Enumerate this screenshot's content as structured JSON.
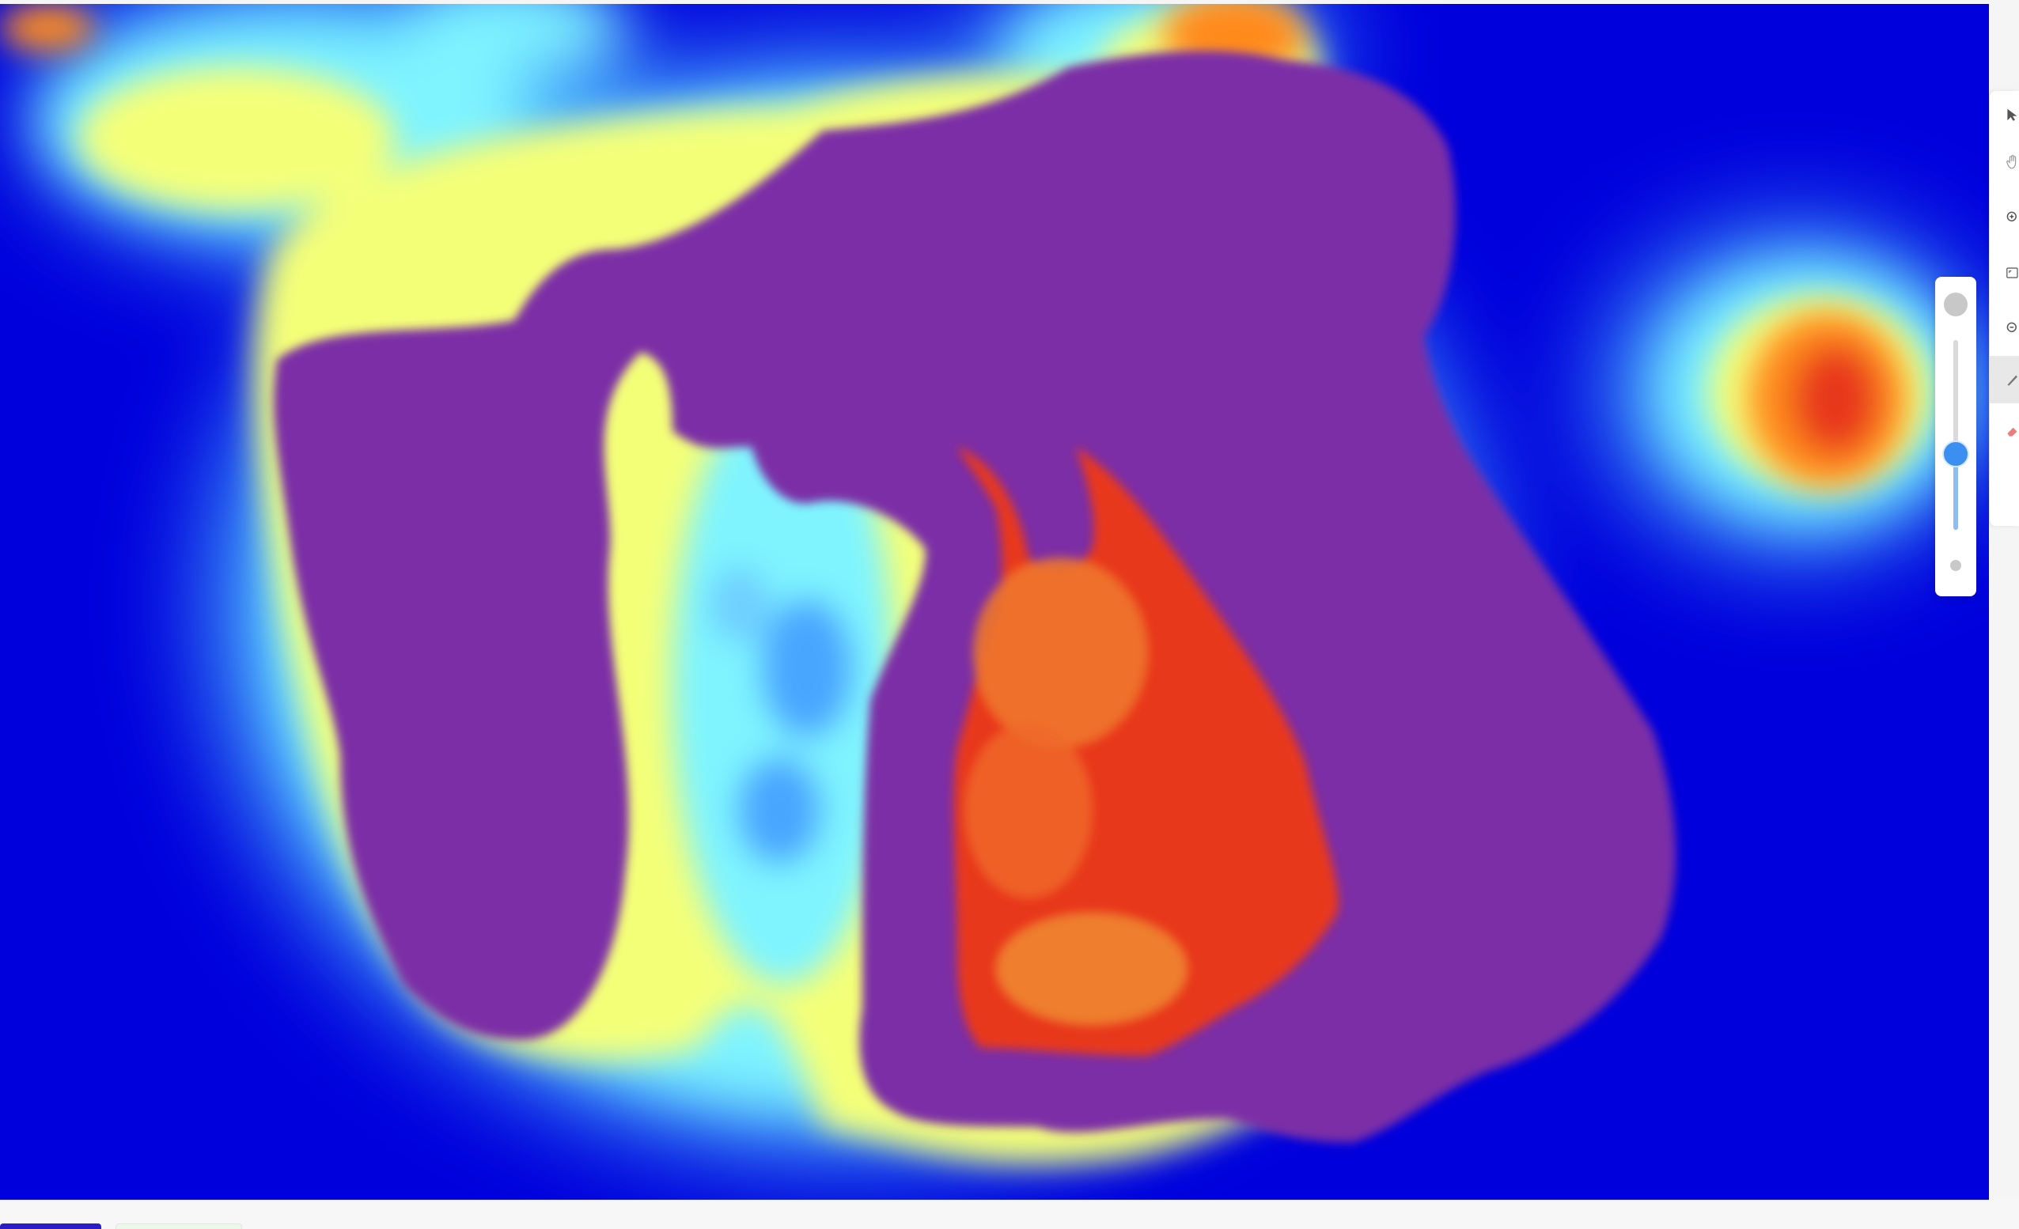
{
  "canvas": {
    "background_color": "#0000dc",
    "heat_colors": [
      "#0000dc",
      "#4ab6ff",
      "#7ff4ff",
      "#f4ff78",
      "#ff8a1e",
      "#e8391c"
    ],
    "mask_color": "#7b2fa6"
  },
  "toolbar": {
    "tools": [
      {
        "icon": "pointer-icon"
      },
      {
        "icon": "hand-icon"
      },
      {
        "icon": "zoom-in-icon"
      },
      {
        "icon": "fit-screen-icon"
      },
      {
        "icon": "zoom-out-icon"
      },
      {
        "icon": "brush-icon",
        "active": true
      },
      {
        "icon": "eraser-icon"
      }
    ]
  },
  "brush_size": {
    "level": 0.4
  },
  "bottom_tabs": {
    "tab_a_color": "#2b1ec8",
    "tab_b_color": "#ecf8ea"
  }
}
